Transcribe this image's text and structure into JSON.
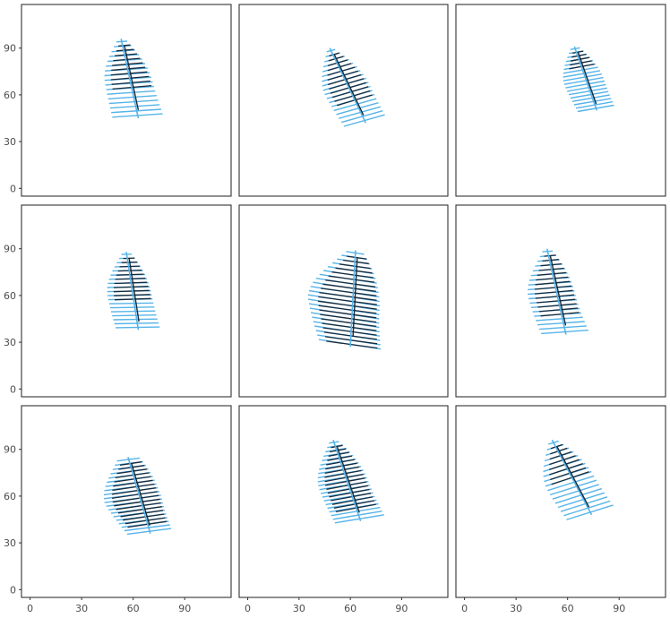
{
  "chart_data": {
    "type": "line",
    "layout": "3x3 facet grid",
    "title": "",
    "xlabel": "",
    "ylabel": "",
    "xlim": [
      -5,
      117
    ],
    "ylim": [
      -5,
      118
    ],
    "x_ticks": [
      0,
      30,
      60,
      90
    ],
    "y_ticks": [
      0,
      30,
      60,
      90
    ],
    "x_tick_labels": [
      "0",
      "30",
      "60",
      "90"
    ],
    "y_tick_labels": [
      "0",
      "30",
      "60",
      "90"
    ],
    "grid": false,
    "legend": "none",
    "colors": {
      "predicted": "#56B4E9",
      "observed": "#1a2a3a",
      "frame": "#333333",
      "tick_label": "#4d4d4d"
    },
    "panels": [
      {
        "spine": {
          "tip": [
            53,
            96
          ],
          "base": [
            63,
            45
          ]
        },
        "line_count": 17,
        "width_top": 4,
        "width_mid": 28,
        "width_bottom": 30,
        "left_bulge": 0.15,
        "observed_fraction": 0.6
      },
      {
        "spine": {
          "tip": [
            48,
            90
          ],
          "base": [
            69,
            42
          ]
        },
        "line_count": 18,
        "width_top": 3,
        "width_mid": 28,
        "width_bottom": 26,
        "left_bulge": 0.2,
        "observed_fraction": 0.65
      },
      {
        "spine": {
          "tip": [
            64,
            91
          ],
          "base": [
            77,
            50
          ]
        },
        "line_count": 18,
        "width_top": 4,
        "width_mid": 24,
        "width_bottom": 22,
        "left_bulge": 0.25,
        "observed_fraction": 0.3
      },
      {
        "spine": {
          "tip": [
            56,
            88
          ],
          "base": [
            63,
            38
          ]
        },
        "line_count": 19,
        "width_top": 4,
        "width_mid": 26,
        "width_bottom": 26,
        "left_bulge": 0.3,
        "observed_fraction": 0.6
      },
      {
        "spine": {
          "tip": [
            63,
            89
          ],
          "base": [
            60,
            27
          ]
        },
        "line_count": 22,
        "width_top": 8,
        "width_mid": 42,
        "width_bottom": 36,
        "left_bulge": 0.5,
        "observed_fraction": 0.95
      },
      {
        "spine": {
          "tip": [
            48,
            90
          ],
          "base": [
            59,
            35
          ]
        },
        "line_count": 19,
        "width_top": 4,
        "width_mid": 28,
        "width_bottom": 28,
        "left_bulge": 0.45,
        "observed_fraction": 0.75
      },
      {
        "spine": {
          "tip": [
            57,
            85
          ],
          "base": [
            70,
            36
          ]
        },
        "line_count": 20,
        "width_top": 12,
        "width_mid": 34,
        "width_bottom": 26,
        "left_bulge": 0.5,
        "observed_fraction": 0.85
      },
      {
        "spine": {
          "tip": [
            50,
            96
          ],
          "base": [
            66,
            44
          ]
        },
        "line_count": 21,
        "width_top": 4,
        "width_mid": 30,
        "width_bottom": 30,
        "left_bulge": 0.35,
        "observed_fraction": 0.8
      },
      {
        "spine": {
          "tip": [
            51,
            96
          ],
          "base": [
            74,
            48
          ]
        },
        "line_count": 17,
        "width_top": 4,
        "width_mid": 30,
        "width_bottom": 30,
        "left_bulge": 0.3,
        "observed_fraction": 0.45
      }
    ]
  }
}
